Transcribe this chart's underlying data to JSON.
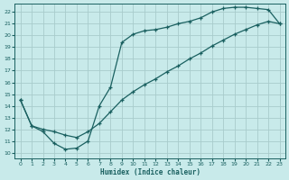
{
  "xlabel": "Humidex (Indice chaleur)",
  "bg_color": "#c8eaea",
  "grid_color": "#a8cccc",
  "line_color": "#1a6060",
  "xlim": [
    -0.5,
    23.5
  ],
  "ylim": [
    9.5,
    22.7
  ],
  "xticks": [
    0,
    1,
    2,
    3,
    4,
    5,
    6,
    7,
    8,
    9,
    10,
    11,
    12,
    13,
    14,
    15,
    16,
    17,
    18,
    19,
    20,
    21,
    22,
    23
  ],
  "yticks": [
    10,
    11,
    12,
    13,
    14,
    15,
    16,
    17,
    18,
    19,
    20,
    21,
    22
  ],
  "line1_x": [
    0,
    1,
    2,
    3,
    4,
    5,
    6,
    7,
    8,
    9,
    10,
    11,
    12,
    13,
    14,
    15,
    16,
    17,
    18,
    19,
    20,
    21,
    22,
    23
  ],
  "line1_y": [
    14.5,
    12.3,
    11.8,
    10.8,
    10.3,
    10.4,
    11.0,
    14.0,
    15.6,
    19.4,
    20.1,
    20.4,
    20.5,
    20.7,
    21.0,
    21.2,
    21.5,
    22.0,
    22.3,
    22.4,
    22.4,
    22.3,
    22.2,
    21.0
  ],
  "line2_x": [
    0,
    1,
    2,
    3,
    4,
    5,
    6,
    7,
    8,
    9,
    10,
    11,
    12,
    13,
    14,
    15,
    16,
    17,
    18,
    19,
    20,
    21,
    22,
    23
  ],
  "line2_y": [
    14.5,
    12.3,
    12.0,
    11.8,
    11.5,
    11.3,
    11.8,
    12.5,
    13.5,
    14.5,
    15.2,
    15.8,
    16.3,
    16.9,
    17.4,
    18.0,
    18.5,
    19.1,
    19.6,
    20.1,
    20.5,
    20.9,
    21.2,
    21.0
  ]
}
